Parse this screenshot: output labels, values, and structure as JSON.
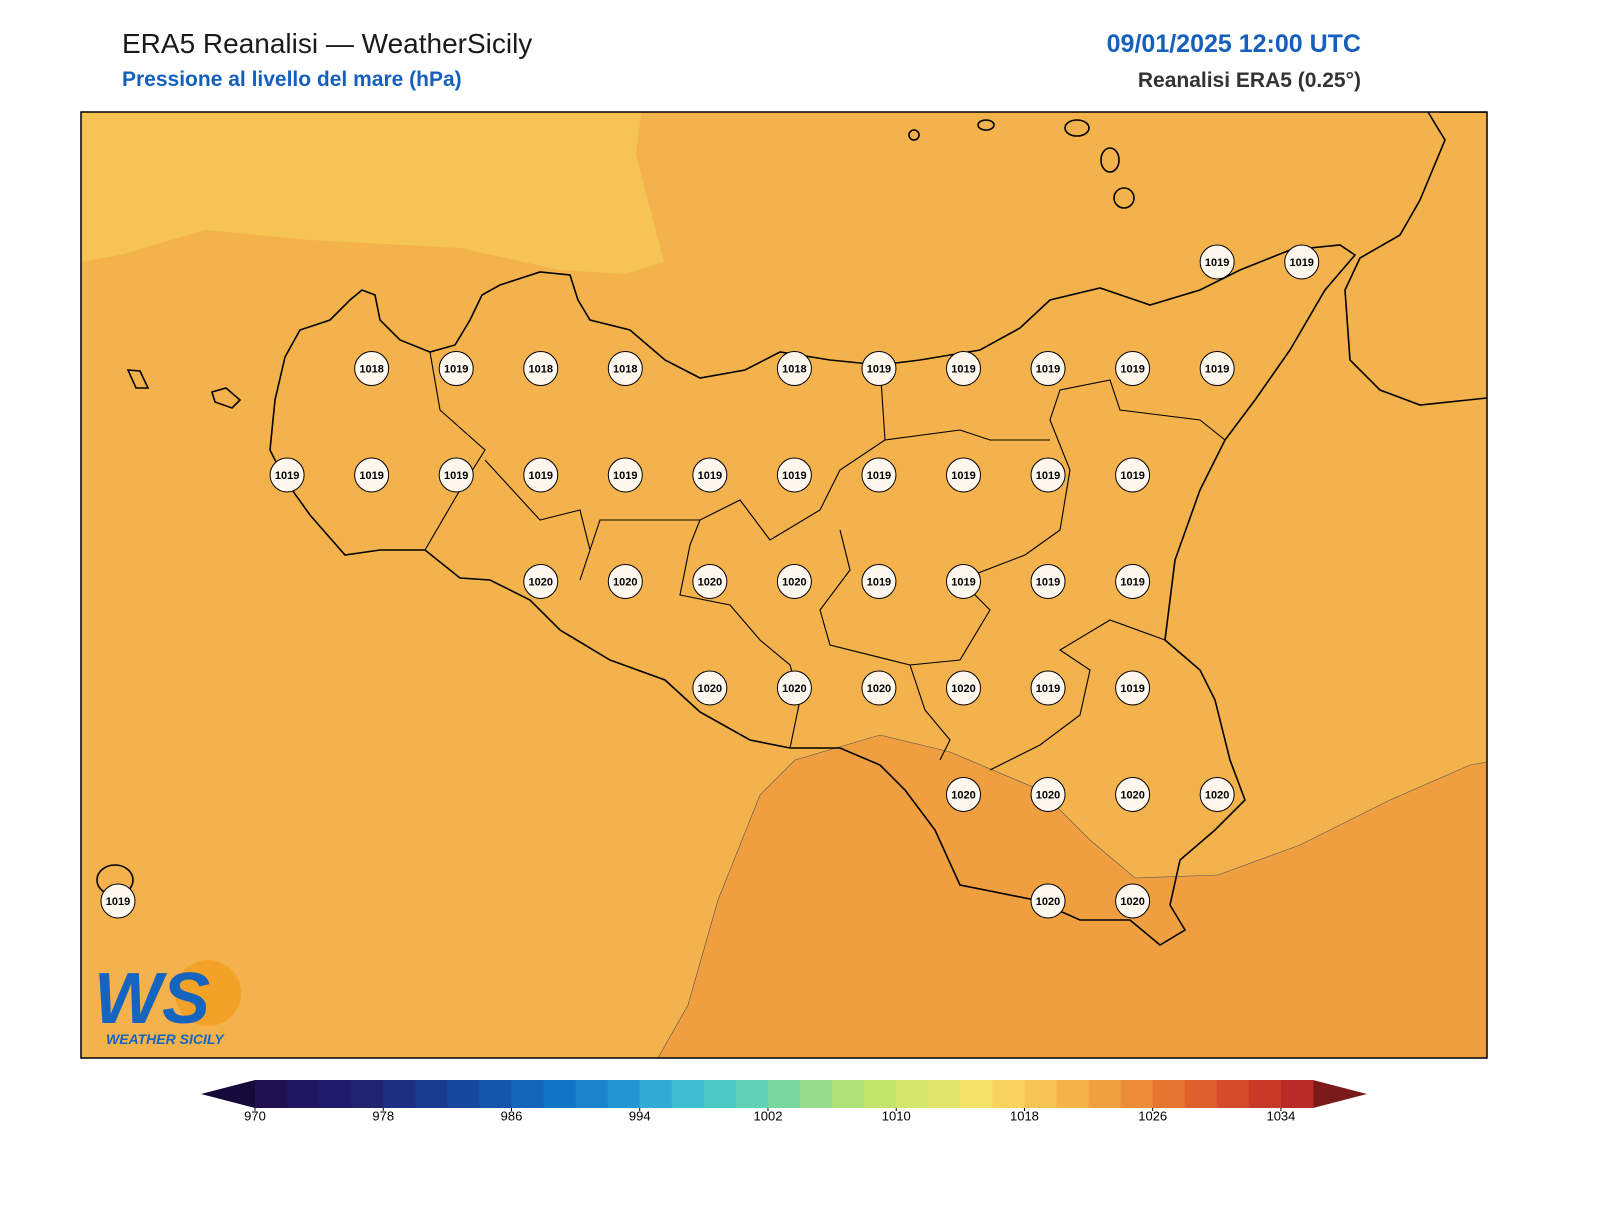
{
  "header": {
    "title": "ERA5 Reanalisi — WeatherSicily",
    "subtitle": "Pressione al livello del mare (hPa)",
    "datetime": "09/01/2025 12:00 UTC",
    "source": "Reanalisi ERA5 (0.25°)"
  },
  "logo": {
    "mark": "WS",
    "name": "WEATHER SICILY"
  },
  "stations": {
    "rows": [
      [
        null,
        null,
        null,
        null,
        null,
        null,
        null,
        null,
        null,
        null,
        null,
        null,
        null,
        1019,
        1019
      ],
      [
        null,
        null,
        null,
        1018,
        1019,
        1018,
        1018,
        null,
        1018,
        1019,
        1019,
        1019,
        1019,
        1019,
        null
      ],
      [
        null,
        null,
        1019,
        1019,
        1019,
        1019,
        1019,
        1019,
        1019,
        1019,
        1019,
        1019,
        1019,
        null,
        null
      ],
      [
        null,
        null,
        null,
        null,
        null,
        1020,
        1020,
        1020,
        1020,
        1019,
        1019,
        1019,
        1019,
        null,
        null
      ],
      [
        null,
        null,
        null,
        null,
        null,
        null,
        null,
        1020,
        1020,
        1020,
        1020,
        1019,
        1019,
        null,
        null
      ],
      [
        null,
        null,
        null,
        null,
        null,
        null,
        null,
        null,
        null,
        null,
        1020,
        1020,
        1020,
        1020,
        null
      ],
      [
        1019,
        null,
        null,
        null,
        null,
        null,
        null,
        null,
        null,
        null,
        null,
        1020,
        1020,
        null,
        null
      ]
    ]
  },
  "colorbar": {
    "lim": [
      970,
      1036
    ],
    "step": 2,
    "ticks": [
      970,
      978,
      986,
      994,
      1002,
      1010,
      1018,
      1026,
      1034
    ],
    "under_color": "#150a3a",
    "over_color": "#7a1a1a",
    "colors": [
      "#1f1050",
      "#201560",
      "#221a6a",
      "#1f2370",
      "#1c2f80",
      "#193b8e",
      "#17489d",
      "#1556ad",
      "#1265b8",
      "#1174c4",
      "#1a85cc",
      "#2396d2",
      "#32abd4",
      "#3fbdd0",
      "#4dc9c5",
      "#62d2b5",
      "#7ad7a0",
      "#94dc8a",
      "#aee178",
      "#c3e46b",
      "#d3e66a",
      "#e3e66c",
      "#f5e26a",
      "#f8d45e",
      "#f6c454",
      "#f3b34a",
      "#f0a040",
      "#ec8c38",
      "#e67531",
      "#de602c",
      "#d44c29",
      "#c83a27",
      "#ba2a26"
    ]
  }
}
